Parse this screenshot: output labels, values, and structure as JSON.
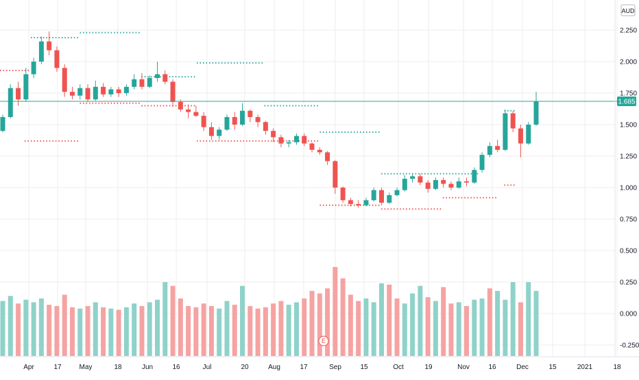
{
  "currency_label": "AUD",
  "current_price_label": "1.685",
  "chart_data": {
    "type": "candlestick",
    "currency": "AUD",
    "last_price": 1.685,
    "y_ticks": [
      "2.250",
      "2.000",
      "1.750",
      "1.500",
      "1.250",
      "1.000",
      "0.750",
      "0.500",
      "0.250",
      "0.000",
      "-0.250"
    ],
    "ylim": [
      -0.3,
      2.3
    ],
    "x_ticks": [
      "Apr",
      "17",
      "May",
      "18",
      "Jun",
      "16",
      "Jul",
      "20",
      "Aug",
      "17",
      "Sep",
      "15",
      "Oct",
      "19",
      "Nov",
      "16",
      "Dec",
      "15",
      "2021",
      "18"
    ],
    "grid": true,
    "earnings_marker": "E",
    "candles": [
      {
        "o": 1.45,
        "h": 1.58,
        "l": 1.44,
        "c": 1.56
      },
      {
        "o": 1.56,
        "h": 1.82,
        "l": 1.55,
        "c": 1.79
      },
      {
        "o": 1.79,
        "h": 1.84,
        "l": 1.65,
        "c": 1.7
      },
      {
        "o": 1.7,
        "h": 1.95,
        "l": 1.68,
        "c": 1.9
      },
      {
        "o": 1.9,
        "h": 2.03,
        "l": 1.87,
        "c": 2.0
      },
      {
        "o": 2.0,
        "h": 2.2,
        "l": 1.98,
        "c": 2.16
      },
      {
        "o": 2.16,
        "h": 2.24,
        "l": 2.05,
        "c": 2.09
      },
      {
        "o": 2.09,
        "h": 2.12,
        "l": 1.92,
        "c": 1.95
      },
      {
        "o": 1.95,
        "h": 1.98,
        "l": 1.72,
        "c": 1.76
      },
      {
        "o": 1.76,
        "h": 1.8,
        "l": 1.7,
        "c": 1.73
      },
      {
        "o": 1.73,
        "h": 1.82,
        "l": 1.7,
        "c": 1.79
      },
      {
        "o": 1.79,
        "h": 1.82,
        "l": 1.68,
        "c": 1.7
      },
      {
        "o": 1.7,
        "h": 1.85,
        "l": 1.69,
        "c": 1.8
      },
      {
        "o": 1.8,
        "h": 1.83,
        "l": 1.72,
        "c": 1.74
      },
      {
        "o": 1.74,
        "h": 1.8,
        "l": 1.72,
        "c": 1.78
      },
      {
        "o": 1.78,
        "h": 1.8,
        "l": 1.72,
        "c": 1.75
      },
      {
        "o": 1.75,
        "h": 1.82,
        "l": 1.73,
        "c": 1.8
      },
      {
        "o": 1.8,
        "h": 1.9,
        "l": 1.78,
        "c": 1.86
      },
      {
        "o": 1.86,
        "h": 1.91,
        "l": 1.78,
        "c": 1.8
      },
      {
        "o": 1.8,
        "h": 1.89,
        "l": 1.79,
        "c": 1.87
      },
      {
        "o": 1.87,
        "h": 2.0,
        "l": 1.84,
        "c": 1.9
      },
      {
        "o": 1.9,
        "h": 1.93,
        "l": 1.82,
        "c": 1.84
      },
      {
        "o": 1.84,
        "h": 1.86,
        "l": 1.64,
        "c": 1.68
      },
      {
        "o": 1.68,
        "h": 1.7,
        "l": 1.6,
        "c": 1.62
      },
      {
        "o": 1.62,
        "h": 1.66,
        "l": 1.55,
        "c": 1.6
      },
      {
        "o": 1.6,
        "h": 1.65,
        "l": 1.56,
        "c": 1.57
      },
      {
        "o": 1.57,
        "h": 1.6,
        "l": 1.45,
        "c": 1.48
      },
      {
        "o": 1.48,
        "h": 1.52,
        "l": 1.38,
        "c": 1.41
      },
      {
        "o": 1.41,
        "h": 1.48,
        "l": 1.38,
        "c": 1.46
      },
      {
        "o": 1.46,
        "h": 1.58,
        "l": 1.45,
        "c": 1.56
      },
      {
        "o": 1.56,
        "h": 1.6,
        "l": 1.46,
        "c": 1.5
      },
      {
        "o": 1.5,
        "h": 1.67,
        "l": 1.49,
        "c": 1.61
      },
      {
        "o": 1.61,
        "h": 1.62,
        "l": 1.52,
        "c": 1.56
      },
      {
        "o": 1.56,
        "h": 1.58,
        "l": 1.48,
        "c": 1.52
      },
      {
        "o": 1.52,
        "h": 1.53,
        "l": 1.42,
        "c": 1.45
      },
      {
        "o": 1.45,
        "h": 1.47,
        "l": 1.36,
        "c": 1.4
      },
      {
        "o": 1.4,
        "h": 1.42,
        "l": 1.32,
        "c": 1.35
      },
      {
        "o": 1.35,
        "h": 1.38,
        "l": 1.32,
        "c": 1.36
      },
      {
        "o": 1.36,
        "h": 1.43,
        "l": 1.34,
        "c": 1.41
      },
      {
        "o": 1.41,
        "h": 1.43,
        "l": 1.33,
        "c": 1.35
      },
      {
        "o": 1.35,
        "h": 1.36,
        "l": 1.28,
        "c": 1.3
      },
      {
        "o": 1.3,
        "h": 1.32,
        "l": 1.26,
        "c": 1.28
      },
      {
        "o": 1.28,
        "h": 1.29,
        "l": 1.18,
        "c": 1.21
      },
      {
        "o": 1.21,
        "h": 1.22,
        "l": 0.95,
        "c": 1.0
      },
      {
        "o": 1.0,
        "h": 1.01,
        "l": 0.88,
        "c": 0.9
      },
      {
        "o": 0.9,
        "h": 0.92,
        "l": 0.85,
        "c": 0.87
      },
      {
        "o": 0.87,
        "h": 0.9,
        "l": 0.84,
        "c": 0.86
      },
      {
        "o": 0.86,
        "h": 0.92,
        "l": 0.85,
        "c": 0.9
      },
      {
        "o": 0.9,
        "h": 1.0,
        "l": 0.89,
        "c": 0.98
      },
      {
        "o": 0.98,
        "h": 1.0,
        "l": 0.86,
        "c": 0.88
      },
      {
        "o": 0.88,
        "h": 0.96,
        "l": 0.87,
        "c": 0.94
      },
      {
        "o": 0.94,
        "h": 1.0,
        "l": 0.93,
        "c": 0.98
      },
      {
        "o": 0.98,
        "h": 1.1,
        "l": 0.97,
        "c": 1.07
      },
      {
        "o": 1.07,
        "h": 1.11,
        "l": 1.04,
        "c": 1.09
      },
      {
        "o": 1.09,
        "h": 1.11,
        "l": 1.02,
        "c": 1.04
      },
      {
        "o": 1.04,
        "h": 1.06,
        "l": 0.96,
        "c": 0.99
      },
      {
        "o": 0.99,
        "h": 1.08,
        "l": 0.98,
        "c": 1.06
      },
      {
        "o": 1.06,
        "h": 1.08,
        "l": 1.0,
        "c": 1.03
      },
      {
        "o": 1.03,
        "h": 1.05,
        "l": 0.98,
        "c": 1.0
      },
      {
        "o": 1.0,
        "h": 1.08,
        "l": 0.99,
        "c": 1.05
      },
      {
        "o": 1.05,
        "h": 1.08,
        "l": 1.01,
        "c": 1.04
      },
      {
        "o": 1.04,
        "h": 1.16,
        "l": 1.03,
        "c": 1.14
      },
      {
        "o": 1.14,
        "h": 1.28,
        "l": 1.12,
        "c": 1.26
      },
      {
        "o": 1.26,
        "h": 1.36,
        "l": 1.24,
        "c": 1.33
      },
      {
        "o": 1.33,
        "h": 1.38,
        "l": 1.28,
        "c": 1.3
      },
      {
        "o": 1.3,
        "h": 1.62,
        "l": 1.29,
        "c": 1.59
      },
      {
        "o": 1.59,
        "h": 1.61,
        "l": 1.44,
        "c": 1.47
      },
      {
        "o": 1.47,
        "h": 1.5,
        "l": 1.24,
        "c": 1.35
      },
      {
        "o": 1.35,
        "h": 1.52,
        "l": 1.34,
        "c": 1.5
      },
      {
        "o": 1.5,
        "h": 1.76,
        "l": 1.49,
        "c": 1.685
      }
    ],
    "volume": [
      {
        "v": 0.1,
        "up": true
      },
      {
        "v": 0.14,
        "up": true
      },
      {
        "v": 0.08,
        "up": false
      },
      {
        "v": 0.11,
        "up": true
      },
      {
        "v": 0.09,
        "up": true
      },
      {
        "v": 0.12,
        "up": true
      },
      {
        "v": 0.07,
        "up": false
      },
      {
        "v": 0.06,
        "up": false
      },
      {
        "v": 0.15,
        "up": false
      },
      {
        "v": 0.05,
        "up": false
      },
      {
        "v": 0.04,
        "up": true
      },
      {
        "v": 0.06,
        "up": false
      },
      {
        "v": 0.09,
        "up": true
      },
      {
        "v": 0.05,
        "up": false
      },
      {
        "v": 0.04,
        "up": true
      },
      {
        "v": 0.03,
        "up": false
      },
      {
        "v": 0.05,
        "up": true
      },
      {
        "v": 0.08,
        "up": true
      },
      {
        "v": 0.06,
        "up": false
      },
      {
        "v": 0.09,
        "up": true
      },
      {
        "v": 0.11,
        "up": true
      },
      {
        "v": 0.25,
        "up": true
      },
      {
        "v": 0.22,
        "up": false
      },
      {
        "v": 0.12,
        "up": false
      },
      {
        "v": 0.06,
        "up": false
      },
      {
        "v": 0.05,
        "up": false
      },
      {
        "v": 0.08,
        "up": false
      },
      {
        "v": 0.06,
        "up": false
      },
      {
        "v": 0.04,
        "up": true
      },
      {
        "v": 0.1,
        "up": true
      },
      {
        "v": 0.07,
        "up": false
      },
      {
        "v": 0.22,
        "up": true
      },
      {
        "v": 0.06,
        "up": false
      },
      {
        "v": 0.04,
        "up": false
      },
      {
        "v": 0.05,
        "up": false
      },
      {
        "v": 0.08,
        "up": false
      },
      {
        "v": 0.1,
        "up": false
      },
      {
        "v": 0.07,
        "up": true
      },
      {
        "v": 0.09,
        "up": true
      },
      {
        "v": 0.12,
        "up": false
      },
      {
        "v": 0.18,
        "up": false
      },
      {
        "v": 0.16,
        "up": false
      },
      {
        "v": 0.2,
        "up": false
      },
      {
        "v": 0.37,
        "up": false
      },
      {
        "v": 0.28,
        "up": false
      },
      {
        "v": 0.15,
        "up": false
      },
      {
        "v": 0.1,
        "up": false
      },
      {
        "v": 0.12,
        "up": true
      },
      {
        "v": 0.09,
        "up": true
      },
      {
        "v": 0.24,
        "up": true
      },
      {
        "v": 0.23,
        "up": false
      },
      {
        "v": 0.12,
        "up": false
      },
      {
        "v": 0.08,
        "up": true
      },
      {
        "v": 0.16,
        "up": true
      },
      {
        "v": 0.22,
        "up": true
      },
      {
        "v": 0.13,
        "up": false
      },
      {
        "v": 0.1,
        "up": true
      },
      {
        "v": 0.21,
        "up": false
      },
      {
        "v": 0.08,
        "up": false
      },
      {
        "v": 0.09,
        "up": true
      },
      {
        "v": 0.06,
        "up": false
      },
      {
        "v": 0.11,
        "up": true
      },
      {
        "v": 0.12,
        "up": true
      },
      {
        "v": 0.2,
        "up": false
      },
      {
        "v": 0.18,
        "up": true
      },
      {
        "v": 0.11,
        "up": true
      },
      {
        "v": 0.25,
        "up": true
      },
      {
        "v": 0.09,
        "up": false
      },
      {
        "v": 0.25,
        "up": true
      },
      {
        "v": 0.18,
        "up": true
      }
    ],
    "support_resistance": [
      {
        "y": 2.19,
        "from": 0.05,
        "to": 0.13,
        "color": "#26a69a"
      },
      {
        "y": 2.23,
        "from": 0.13,
        "to": 0.23,
        "color": "#26a69a"
      },
      {
        "y": 1.93,
        "from": 0.0,
        "to": 0.05,
        "color": "#ef5350"
      },
      {
        "y": 1.37,
        "from": 0.04,
        "to": 0.13,
        "color": "#ef5350"
      },
      {
        "y": 1.67,
        "from": 0.13,
        "to": 0.23,
        "color": "#ef5350"
      },
      {
        "y": 1.88,
        "from": 0.23,
        "to": 0.32,
        "color": "#26a69a"
      },
      {
        "y": 1.65,
        "from": 0.23,
        "to": 0.32,
        "color": "#ef5350"
      },
      {
        "y": 1.99,
        "from": 0.32,
        "to": 0.43,
        "color": "#26a69a"
      },
      {
        "y": 1.37,
        "from": 0.32,
        "to": 0.52,
        "color": "#ef5350"
      },
      {
        "y": 1.65,
        "from": 0.43,
        "to": 0.52,
        "color": "#26a69a"
      },
      {
        "y": 1.44,
        "from": 0.52,
        "to": 0.62,
        "color": "#26a69a"
      },
      {
        "y": 0.86,
        "from": 0.52,
        "to": 0.62,
        "color": "#ef5350"
      },
      {
        "y": 1.11,
        "from": 0.62,
        "to": 0.78,
        "color": "#26a69a"
      },
      {
        "y": 0.83,
        "from": 0.62,
        "to": 0.72,
        "color": "#ef5350"
      },
      {
        "y": 0.92,
        "from": 0.72,
        "to": 0.81,
        "color": "#ef5350"
      },
      {
        "y": 1.61,
        "from": 0.82,
        "to": 0.84,
        "color": "#26a69a"
      },
      {
        "y": 1.02,
        "from": 0.82,
        "to": 0.84,
        "color": "#ef5350"
      }
    ],
    "colors": {
      "up": "#26a69a",
      "down": "#ef5350",
      "up_volume": "#8fd2c9",
      "down_volume": "#f5a3a2",
      "price_line": "#26a69a",
      "grid": "#eeeeee",
      "axis_text": "#131722",
      "price_label_bg": "#26a69a"
    }
  }
}
